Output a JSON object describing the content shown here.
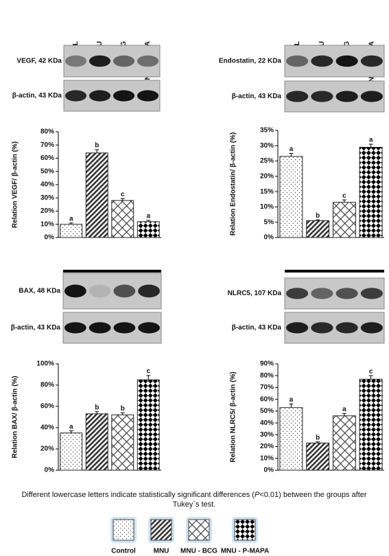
{
  "chart_data": [
    {
      "type": "bar",
      "lane_labels": [
        "CONTROL",
        "MNU",
        "MNU-BCG",
        "MNU-P-MAPA"
      ],
      "blots": [
        "VEGF, 42 KDa",
        "β-actin, 43 KDa"
      ],
      "y_label": "Relation VEGF/ β-actin (%)",
      "categories": [
        null,
        null,
        null,
        null
      ],
      "values": [
        10,
        64,
        28,
        12
      ],
      "errors": [
        1,
        2.5,
        1.5,
        1
      ],
      "annotations": [
        "a",
        "b",
        "c",
        "a"
      ],
      "ylim": [
        0,
        80
      ],
      "yticks": [
        {
          "value": 0,
          "label": "0%"
        },
        {
          "value": 10,
          "label": "10%"
        },
        {
          "value": 20,
          "label": "20%"
        },
        {
          "value": 30,
          "label": "30%"
        },
        {
          "value": 40,
          "label": "40%"
        },
        {
          "value": 50,
          "label": "50%"
        },
        {
          "value": 60,
          "label": "60%"
        },
        {
          "value": 70,
          "label": "70%"
        },
        {
          "value": 80,
          "label": "80%"
        }
      ]
    },
    {
      "type": "bar",
      "lane_labels": [
        "CONTROL",
        "MNU",
        "MNU-BCG",
        "MNU- P-MAPA"
      ],
      "blots": [
        "Endostatin, 22 KDa",
        "β-actin, 43 KDa"
      ],
      "y_label": "Relation Endostatin/ β-actin (%)",
      "categories": [
        null,
        null,
        null,
        null
      ],
      "values": [
        26.5,
        5.5,
        11.5,
        29.5
      ],
      "errors": [
        1,
        0.3,
        0.8,
        1
      ],
      "annotations": [
        "a",
        "b",
        "c",
        "a"
      ],
      "ylim": [
        0,
        35
      ],
      "yticks": [
        {
          "value": 0,
          "label": "0%"
        },
        {
          "value": 5,
          "label": "5%"
        },
        {
          "value": 10,
          "label": "10%"
        },
        {
          "value": 15,
          "label": "15%"
        },
        {
          "value": 20,
          "label": "20%"
        },
        {
          "value": 25,
          "label": "25%"
        },
        {
          "value": 30,
          "label": "30%"
        },
        {
          "value": 35,
          "label": "35%"
        }
      ]
    },
    {
      "type": "bar",
      "blots": [
        "BAX, 48 KDa",
        "β-actin, 43 KDa"
      ],
      "y_label": "Relation BAX/ β-actin (%)",
      "categories": [
        null,
        null,
        null,
        null
      ],
      "values": [
        35,
        53,
        52,
        85
      ],
      "errors": [
        2,
        2,
        2,
        4
      ],
      "annotations": [
        "a",
        "b",
        "b",
        "c"
      ],
      "ylim": [
        0,
        100
      ],
      "yticks": [
        {
          "value": 0,
          "label": "0%"
        },
        {
          "value": 20,
          "label": "20%"
        },
        {
          "value": 40,
          "label": "40%"
        },
        {
          "value": 60,
          "label": "60%"
        },
        {
          "value": 80,
          "label": "80%"
        },
        {
          "value": 100,
          "label": "100%"
        }
      ]
    },
    {
      "type": "bar",
      "blots": [
        "NLRC5, 107 KDa",
        "β-actin, 43 KDa"
      ],
      "y_label": "Relation NLRC5/ β-actin (%)",
      "categories": [
        null,
        null,
        null,
        null
      ],
      "values": [
        53,
        23,
        46,
        77
      ],
      "errors": [
        3,
        1,
        2,
        3
      ],
      "annotations": [
        "a",
        "b",
        "a",
        "c"
      ],
      "ylim": [
        0,
        90
      ],
      "yticks": [
        {
          "value": 0,
          "label": "0%"
        },
        {
          "value": 10,
          "label": "10%"
        },
        {
          "value": 20,
          "label": "20%"
        },
        {
          "value": 30,
          "label": "30%"
        },
        {
          "value": 40,
          "label": "40%"
        },
        {
          "value": 50,
          "label": "50%"
        },
        {
          "value": 60,
          "label": "60%"
        },
        {
          "value": 70,
          "label": "70%"
        },
        {
          "value": 80,
          "label": "80%"
        },
        {
          "value": 90,
          "label": "90%"
        }
      ]
    }
  ],
  "footnote": [
    "Different lowercase letters indicate statistically significant differences (",
    "P",
    "<0.01) between the groups after",
    "Tukey`s test."
  ],
  "legend": [
    "Control",
    "MNU",
    "MNU - BCG",
    "MNU - P-MAPA"
  ]
}
